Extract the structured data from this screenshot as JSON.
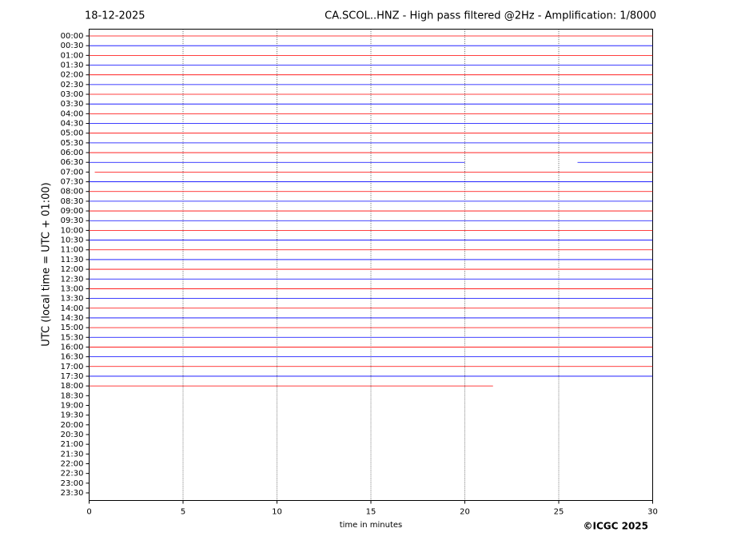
{
  "chart_data": {
    "type": "helicorder",
    "title_left": "18-12-2025",
    "title": "CA.SCOL..HNZ - High pass filtered @2Hz - Amplification: 1/8000",
    "y_label": "UTC (local time = UTC + 01:00)",
    "x_label": "time in minutes",
    "copyright": "©ICGC 2025",
    "xlim": [
      0,
      30
    ],
    "xticks": [
      0,
      5,
      10,
      15,
      20,
      25,
      30
    ],
    "grid": true,
    "trace_colors": [
      "#ff0000",
      "#0000ff"
    ],
    "categories": [
      "00:00",
      "00:30",
      "01:00",
      "01:30",
      "02:00",
      "02:30",
      "03:00",
      "03:30",
      "04:00",
      "04:30",
      "05:00",
      "05:30",
      "06:00",
      "06:30",
      "07:00",
      "07:30",
      "08:00",
      "08:30",
      "09:00",
      "09:30",
      "10:00",
      "10:30",
      "11:00",
      "11:30",
      "12:00",
      "12:30",
      "13:00",
      "13:30",
      "14:00",
      "14:30",
      "15:00",
      "15:30",
      "16:00",
      "16:30",
      "17:00",
      "17:30",
      "18:00",
      "18:30",
      "19:00",
      "19:30",
      "20:00",
      "20:30",
      "21:00",
      "21:30",
      "22:00",
      "22:30",
      "23:00",
      "23:30"
    ],
    "segments": [
      [
        [
          0,
          30
        ]
      ],
      [
        [
          0,
          30
        ]
      ],
      [
        [
          0,
          30
        ]
      ],
      [
        [
          0,
          30
        ]
      ],
      [
        [
          0,
          30
        ]
      ],
      [
        [
          0,
          30
        ]
      ],
      [
        [
          0,
          30
        ]
      ],
      [
        [
          0,
          30
        ]
      ],
      [
        [
          0,
          30
        ]
      ],
      [
        [
          0,
          30
        ]
      ],
      [
        [
          0,
          30
        ]
      ],
      [
        [
          0,
          30
        ]
      ],
      [
        [
          0,
          30
        ]
      ],
      [
        [
          0,
          20
        ],
        [
          26,
          30
        ]
      ],
      [
        [
          0.3,
          30
        ]
      ],
      [
        [
          0,
          30
        ]
      ],
      [
        [
          0,
          30
        ]
      ],
      [
        [
          0,
          30
        ]
      ],
      [
        [
          0,
          30
        ]
      ],
      [
        [
          0,
          30
        ]
      ],
      [
        [
          0,
          30
        ]
      ],
      [
        [
          0,
          30
        ]
      ],
      [
        [
          0,
          30
        ]
      ],
      [
        [
          0,
          30
        ]
      ],
      [
        [
          0,
          30
        ]
      ],
      [
        [
          0,
          30
        ]
      ],
      [
        [
          0,
          30
        ]
      ],
      [
        [
          0,
          30
        ]
      ],
      [
        [
          0,
          30
        ]
      ],
      [
        [
          0,
          30
        ]
      ],
      [
        [
          0,
          30
        ]
      ],
      [
        [
          0,
          30
        ]
      ],
      [
        [
          0,
          30
        ]
      ],
      [
        [
          0,
          30
        ]
      ],
      [
        [
          0,
          30
        ]
      ],
      [
        [
          0,
          30
        ]
      ],
      [
        [
          0,
          21.5
        ]
      ],
      [],
      [],
      [],
      [],
      [],
      [],
      [],
      [],
      [],
      [],
      []
    ]
  }
}
